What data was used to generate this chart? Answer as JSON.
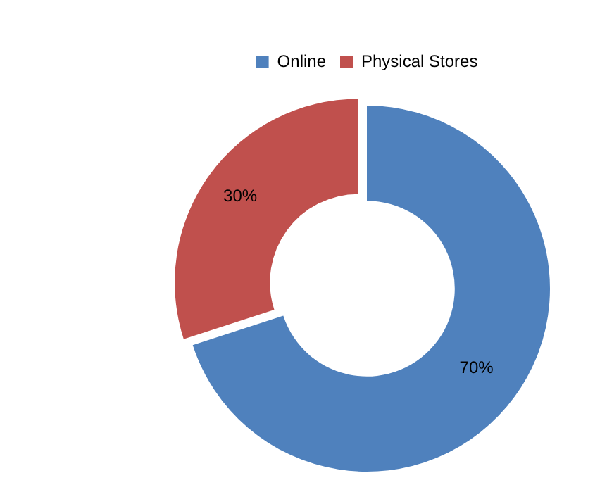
{
  "chart_data": {
    "type": "donut",
    "categories": [
      "Online",
      "Physical Stores"
    ],
    "values": [
      70,
      30
    ],
    "colors": [
      "#4f81bd",
      "#c0504d"
    ],
    "value_labels": [
      "70%",
      "30%"
    ],
    "legend": "top"
  }
}
